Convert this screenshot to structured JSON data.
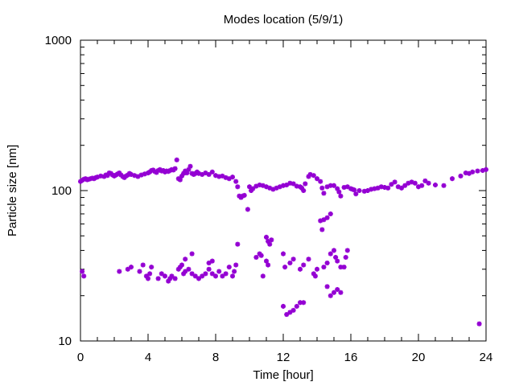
{
  "chart_data": {
    "type": "scatter",
    "title": "Modes location (5/9/1)",
    "xlabel": "Time [hour]",
    "ylabel": "Particle size [nm]",
    "xlim": [
      0,
      24
    ],
    "ylim": [
      10,
      1000
    ],
    "yscale": "log",
    "grid": false,
    "legend": "none",
    "marker_color": "#9400d3",
    "x_ticks": [
      {
        "value": 0,
        "label": "0"
      },
      {
        "value": 4,
        "label": "4"
      },
      {
        "value": 8,
        "label": "8"
      },
      {
        "value": 12,
        "label": "12"
      },
      {
        "value": 16,
        "label": "16"
      },
      {
        "value": 20,
        "label": "20"
      },
      {
        "value": 24,
        "label": "24"
      }
    ],
    "y_ticks": [
      {
        "value": 10,
        "label": "10"
      },
      {
        "value": 100,
        "label": "100"
      },
      {
        "value": 1000,
        "label": "1000"
      }
    ],
    "points": [
      [
        0.0,
        115
      ],
      [
        0.1,
        117
      ],
      [
        0.2,
        119
      ],
      [
        0.3,
        120
      ],
      [
        0.4,
        118
      ],
      [
        0.5,
        119
      ],
      [
        0.6,
        120
      ],
      [
        0.7,
        121
      ],
      [
        0.8,
        120
      ],
      [
        0.9,
        122
      ],
      [
        1.0,
        123
      ],
      [
        1.2,
        125
      ],
      [
        1.4,
        124
      ],
      [
        1.5,
        127
      ],
      [
        1.6,
        126
      ],
      [
        1.7,
        131
      ],
      [
        1.8,
        130
      ],
      [
        1.9,
        127
      ],
      [
        2.0,
        125
      ],
      [
        2.1,
        127
      ],
      [
        2.2,
        129
      ],
      [
        2.3,
        131
      ],
      [
        2.4,
        127
      ],
      [
        2.5,
        124
      ],
      [
        2.6,
        122
      ],
      [
        2.7,
        125
      ],
      [
        2.8,
        127
      ],
      [
        2.9,
        130
      ],
      [
        3.0,
        128
      ],
      [
        3.2,
        126
      ],
      [
        3.4,
        124
      ],
      [
        3.6,
        127
      ],
      [
        3.8,
        129
      ],
      [
        4.0,
        131
      ],
      [
        4.1,
        133
      ],
      [
        4.2,
        136
      ],
      [
        4.3,
        137
      ],
      [
        4.4,
        134
      ],
      [
        4.5,
        132
      ],
      [
        4.6,
        136
      ],
      [
        4.7,
        138
      ],
      [
        4.8,
        135
      ],
      [
        4.9,
        136
      ],
      [
        5.0,
        133
      ],
      [
        5.1,
        135
      ],
      [
        5.2,
        134
      ],
      [
        5.3,
        136
      ],
      [
        5.4,
        138
      ],
      [
        5.5,
        137
      ],
      [
        5.6,
        140
      ],
      [
        5.7,
        160
      ],
      [
        5.8,
        120
      ],
      [
        5.9,
        118
      ],
      [
        6.0,
        125
      ],
      [
        6.1,
        130
      ],
      [
        6.2,
        135
      ],
      [
        6.3,
        131
      ],
      [
        6.4,
        138
      ],
      [
        6.5,
        145
      ],
      [
        6.6,
        130
      ],
      [
        6.7,
        128
      ],
      [
        6.8,
        130
      ],
      [
        6.9,
        133
      ],
      [
        7.0,
        130
      ],
      [
        7.2,
        128
      ],
      [
        7.4,
        131
      ],
      [
        7.6,
        128
      ],
      [
        7.8,
        133
      ],
      [
        8.0,
        126
      ],
      [
        8.2,
        124
      ],
      [
        8.4,
        125
      ],
      [
        8.6,
        122
      ],
      [
        8.8,
        120
      ],
      [
        9.0,
        123
      ],
      [
        9.2,
        115
      ],
      [
        9.3,
        106
      ],
      [
        9.4,
        92
      ],
      [
        9.5,
        90
      ],
      [
        9.6,
        92
      ],
      [
        9.7,
        93
      ],
      [
        10.0,
        106
      ],
      [
        10.1,
        100
      ],
      [
        10.2,
        103
      ],
      [
        10.4,
        107
      ],
      [
        10.6,
        109
      ],
      [
        10.8,
        108
      ],
      [
        11.0,
        106
      ],
      [
        11.2,
        104
      ],
      [
        11.4,
        102
      ],
      [
        11.6,
        104
      ],
      [
        11.8,
        106
      ],
      [
        12.0,
        108
      ],
      [
        12.2,
        109
      ],
      [
        12.4,
        112
      ],
      [
        12.6,
        111
      ],
      [
        12.8,
        107
      ],
      [
        13.0,
        106
      ],
      [
        13.1,
        104
      ],
      [
        13.2,
        100
      ],
      [
        13.3,
        111
      ],
      [
        13.5,
        124
      ],
      [
        13.6,
        128
      ],
      [
        13.8,
        126
      ],
      [
        14.0,
        120
      ],
      [
        14.2,
        115
      ],
      [
        14.3,
        104
      ],
      [
        14.4,
        96
      ],
      [
        14.6,
        106
      ],
      [
        14.8,
        108
      ],
      [
        15.0,
        108
      ],
      [
        15.2,
        103
      ],
      [
        15.3,
        98
      ],
      [
        15.4,
        92
      ],
      [
        15.6,
        105
      ],
      [
        15.8,
        106
      ],
      [
        16.0,
        103
      ],
      [
        16.1,
        102
      ],
      [
        16.2,
        101
      ],
      [
        16.3,
        95
      ],
      [
        16.5,
        100
      ],
      [
        16.8,
        99
      ],
      [
        17.0,
        100
      ],
      [
        17.2,
        102
      ],
      [
        17.4,
        103
      ],
      [
        17.6,
        104
      ],
      [
        17.8,
        106
      ],
      [
        18.0,
        105
      ],
      [
        18.2,
        104
      ],
      [
        18.4,
        110
      ],
      [
        18.6,
        114
      ],
      [
        18.8,
        106
      ],
      [
        19.0,
        104
      ],
      [
        19.2,
        108
      ],
      [
        19.4,
        112
      ],
      [
        19.6,
        114
      ],
      [
        19.8,
        112
      ],
      [
        20.0,
        106
      ],
      [
        20.2,
        108
      ],
      [
        20.4,
        116
      ],
      [
        20.6,
        112
      ],
      [
        21.0,
        109
      ],
      [
        21.5,
        108
      ],
      [
        22.0,
        120
      ],
      [
        22.5,
        125
      ],
      [
        23.0,
        130
      ],
      [
        23.5,
        135
      ],
      [
        24.0,
        138
      ],
      [
        23.8,
        136
      ],
      [
        23.2,
        133
      ],
      [
        22.8,
        131
      ],
      [
        9.9,
        75
      ],
      [
        14.8,
        70
      ],
      [
        14.4,
        64
      ],
      [
        14.6,
        66
      ],
      [
        14.3,
        55
      ],
      [
        14.2,
        63
      ],
      [
        0.1,
        29
      ],
      [
        0.2,
        27
      ],
      [
        2.3,
        29
      ],
      [
        2.8,
        30
      ],
      [
        3.0,
        31
      ],
      [
        3.5,
        29
      ],
      [
        3.7,
        32
      ],
      [
        3.9,
        27
      ],
      [
        4.0,
        26
      ],
      [
        4.1,
        28
      ],
      [
        4.2,
        31
      ],
      [
        4.6,
        26
      ],
      [
        4.8,
        28
      ],
      [
        5.0,
        27
      ],
      [
        5.2,
        25
      ],
      [
        5.3,
        26
      ],
      [
        5.4,
        27
      ],
      [
        5.6,
        26
      ],
      [
        5.8,
        30
      ],
      [
        5.9,
        31
      ],
      [
        6.0,
        32
      ],
      [
        6.1,
        28
      ],
      [
        6.2,
        29
      ],
      [
        6.4,
        30
      ],
      [
        6.6,
        28
      ],
      [
        6.8,
        27
      ],
      [
        7.0,
        26
      ],
      [
        7.2,
        27
      ],
      [
        7.4,
        28
      ],
      [
        7.6,
        30
      ],
      [
        7.8,
        28
      ],
      [
        8.0,
        27
      ],
      [
        8.2,
        29
      ],
      [
        8.4,
        27
      ],
      [
        8.6,
        28
      ],
      [
        8.8,
        31
      ],
      [
        9.0,
        27
      ],
      [
        9.1,
        29
      ],
      [
        9.2,
        32
      ],
      [
        9.3,
        44
      ],
      [
        6.6,
        38
      ],
      [
        6.2,
        35
      ],
      [
        7.6,
        33
      ],
      [
        7.8,
        34
      ],
      [
        10.4,
        36
      ],
      [
        10.6,
        38
      ],
      [
        10.7,
        37
      ],
      [
        10.8,
        27
      ],
      [
        11.0,
        34
      ],
      [
        11.1,
        32
      ],
      [
        11.0,
        49
      ],
      [
        11.1,
        46
      ],
      [
        11.2,
        44
      ],
      [
        11.3,
        47
      ],
      [
        12.0,
        38
      ],
      [
        12.1,
        31
      ],
      [
        12.4,
        33
      ],
      [
        12.6,
        35
      ],
      [
        13.0,
        30
      ],
      [
        13.2,
        32
      ],
      [
        13.5,
        35
      ],
      [
        13.8,
        28
      ],
      [
        13.9,
        27
      ],
      [
        14.0,
        30
      ],
      [
        14.4,
        31
      ],
      [
        14.6,
        33
      ],
      [
        14.8,
        38
      ],
      [
        15.0,
        40
      ],
      [
        15.1,
        36
      ],
      [
        15.2,
        34
      ],
      [
        15.4,
        31
      ],
      [
        15.6,
        31
      ],
      [
        15.8,
        40
      ],
      [
        15.7,
        36
      ],
      [
        12.0,
        17
      ],
      [
        12.2,
        15
      ],
      [
        12.4,
        15.5
      ],
      [
        12.6,
        16
      ],
      [
        12.8,
        17
      ],
      [
        13.0,
        18
      ],
      [
        13.2,
        18
      ],
      [
        14.6,
        23
      ],
      [
        14.8,
        20
      ],
      [
        15.0,
        21
      ],
      [
        15.2,
        22
      ],
      [
        15.4,
        21
      ],
      [
        23.6,
        13
      ]
    ]
  }
}
